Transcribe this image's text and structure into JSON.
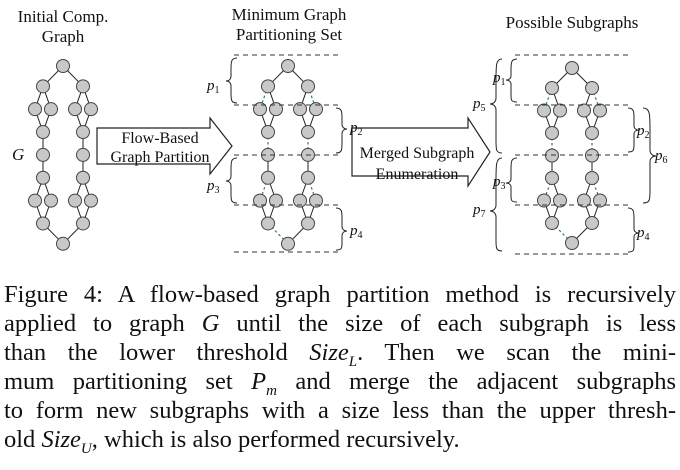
{
  "labels": {
    "col1_line1": "Initial Comp.",
    "col1_line2": "Graph",
    "col2_line1": "Minimum Graph",
    "col2_line2": "Partitioning Set",
    "col3": "Possible Subgraphs",
    "graph_g": "G",
    "arrow1_line1": "Flow-Based",
    "arrow1_line2": "Graph Partition",
    "arrow2_line1": "Merged Subgraph",
    "arrow2_line2": "Enumeration",
    "p1": "p",
    "p2": "p",
    "p3": "p",
    "p4": "p",
    "p5": "p",
    "p6": "p",
    "p7": "p",
    "sub1": "1",
    "sub2": "2",
    "sub3": "3",
    "sub4": "4",
    "sub5": "5",
    "sub6": "6",
    "sub7": "7"
  },
  "caption": {
    "l1": "Figure 4: A flow-based graph partition method is recursively",
    "l2a": "applied to graph ",
    "l2b": "G",
    "l2c": " until the size of each subgraph is less",
    "l3a": "than the lower threshold ",
    "l3b": "Size",
    "l3c": "L",
    "l3d": ". Then we scan the mini-",
    "l4a": "mum partitioning set ",
    "l4b": "P",
    "l4c": "m",
    "l4d": " and merge the adjacent subgraphs",
    "l5": "to form new subgraphs with a size less than the upper thresh-",
    "l6a": "old ",
    "l6b": "Size",
    "l6c": "U",
    "l6d": ", which is also performed recursively."
  }
}
